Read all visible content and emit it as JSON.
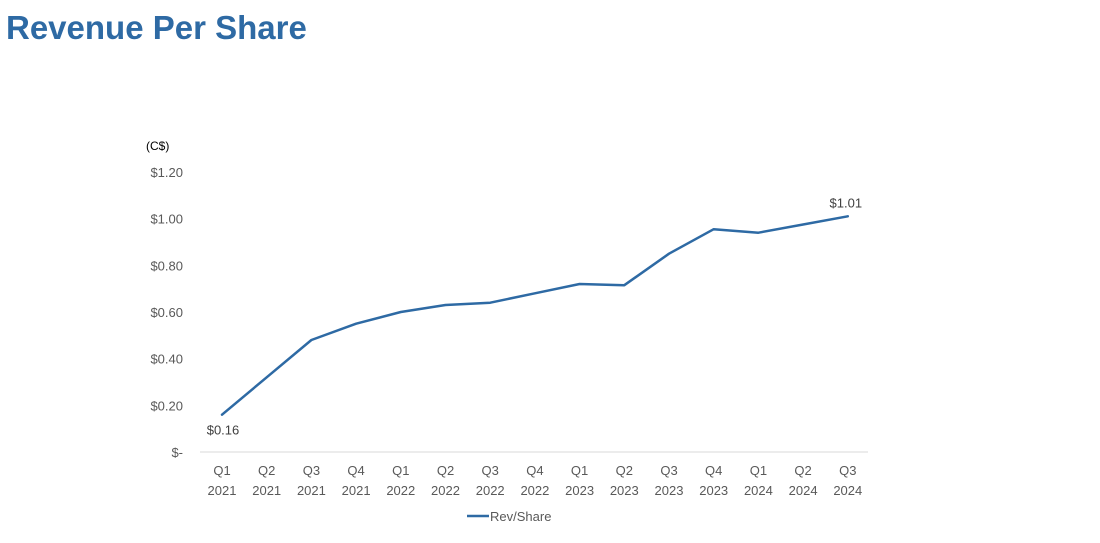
{
  "page": {
    "title": "Revenue Per Share"
  },
  "chart_data": {
    "type": "line",
    "title": "",
    "unit_label": "(C$)",
    "xlabel": "",
    "ylabel": "",
    "ylim": [
      0,
      1.2
    ],
    "yticks": [
      0,
      0.2,
      0.4,
      0.6,
      0.8,
      1.0,
      1.2
    ],
    "ytick_labels": [
      "$-",
      "$0.20",
      "$0.40",
      "$0.60",
      "$0.80",
      "$1.00",
      "$1.20"
    ],
    "categories": [
      [
        "Q1",
        "2021"
      ],
      [
        "Q2",
        "2021"
      ],
      [
        "Q3",
        "2021"
      ],
      [
        "Q4",
        "2021"
      ],
      [
        "Q1",
        "2022"
      ],
      [
        "Q2",
        "2022"
      ],
      [
        "Q3",
        "2022"
      ],
      [
        "Q4",
        "2022"
      ],
      [
        "Q1",
        "2023"
      ],
      [
        "Q2",
        "2023"
      ],
      [
        "Q3",
        "2023"
      ],
      [
        "Q4",
        "2023"
      ],
      [
        "Q1",
        "2024"
      ],
      [
        "Q2",
        "2024"
      ],
      [
        "Q3",
        "2024"
      ]
    ],
    "series": [
      {
        "name": "Rev/Share",
        "color": "#2e6aa4",
        "values": [
          0.16,
          0.32,
          0.48,
          0.55,
          0.6,
          0.63,
          0.64,
          0.68,
          0.72,
          0.715,
          0.85,
          0.955,
          0.94,
          0.975,
          1.01
        ]
      }
    ],
    "data_labels": [
      {
        "index": 0,
        "text": "$0.16",
        "position": "below"
      },
      {
        "index": 14,
        "text": "$1.01",
        "position": "above"
      }
    ],
    "legend": {
      "position": "bottom",
      "entries": [
        "Rev/Share"
      ]
    },
    "grid": false
  }
}
